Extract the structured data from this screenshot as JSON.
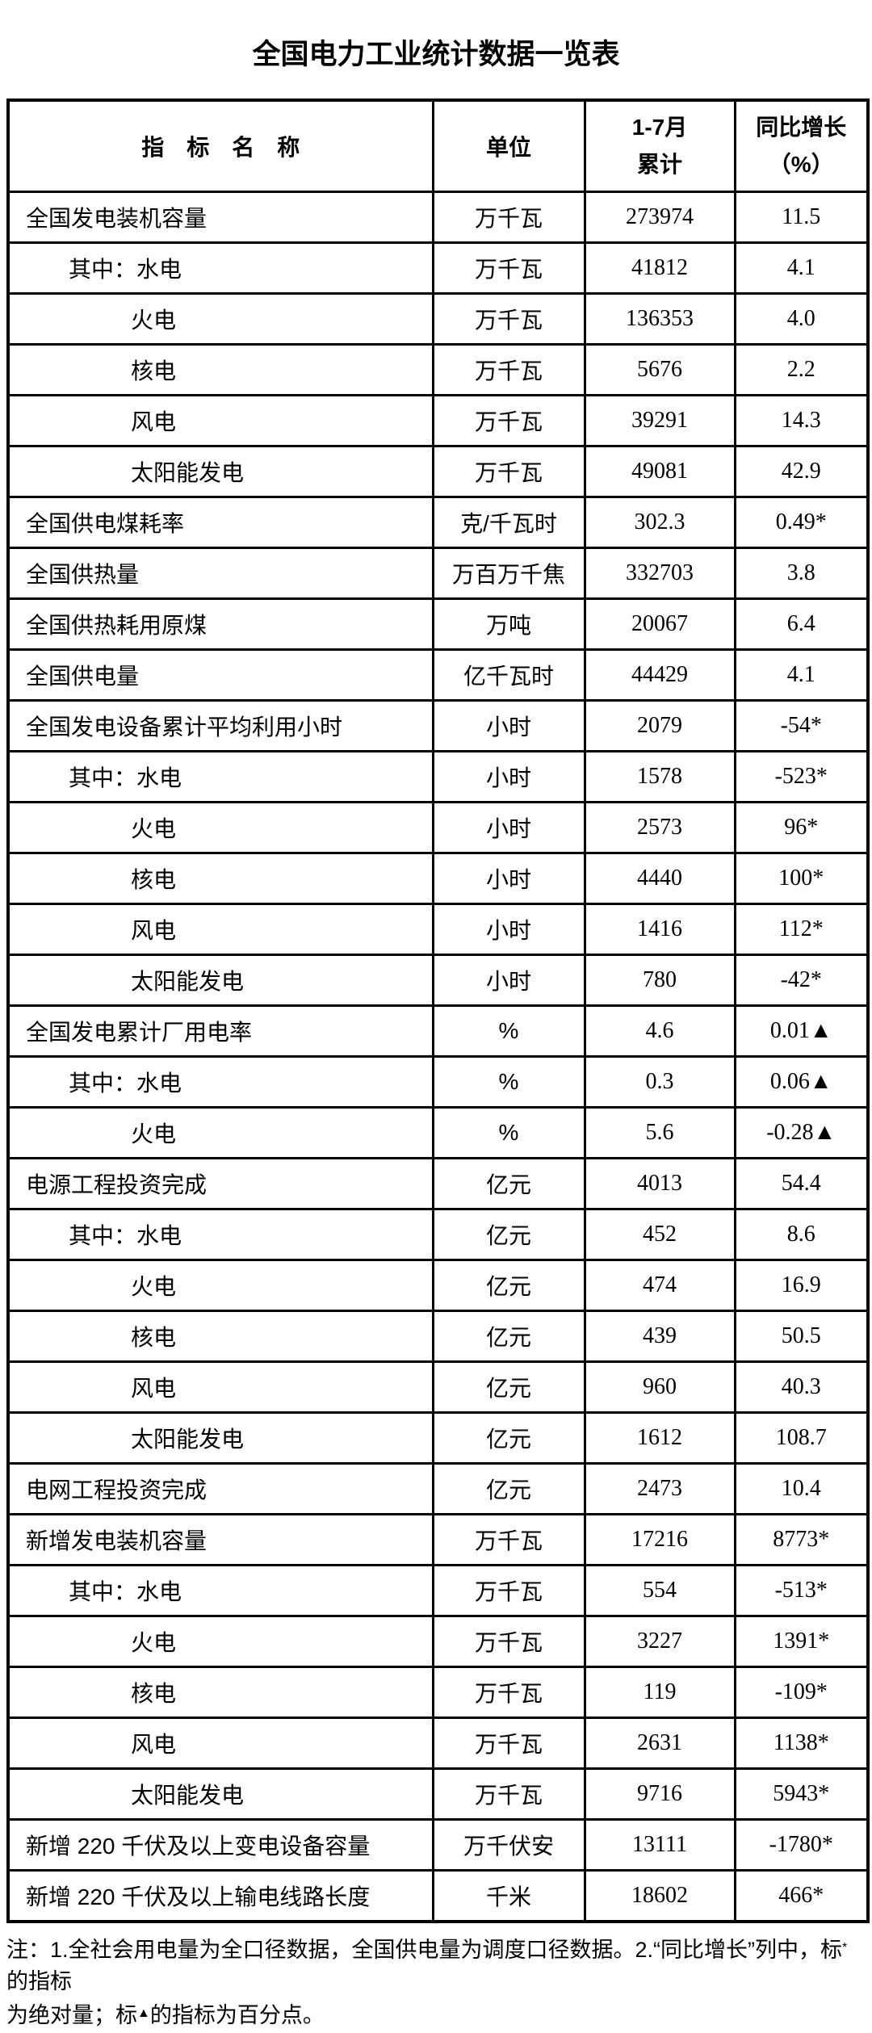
{
  "page": {
    "title": "全国电力工业统计数据一览表"
  },
  "table": {
    "header": {
      "indicator": "指　标　名　称",
      "unit": "单位",
      "period_line1": "1-7月",
      "period_line2": "累计",
      "growth_line1": "同比增长",
      "growth_line2": "（%）"
    },
    "rows": [
      {
        "name": "全国发电装机容量",
        "unit": "万千瓦",
        "value": "273974",
        "growth": "11.5",
        "indent": 0
      },
      {
        "name": "其中：水电",
        "unit": "万千瓦",
        "value": "41812",
        "growth": "4.1",
        "indent": 1
      },
      {
        "name": "火电",
        "unit": "万千瓦",
        "value": "136353",
        "growth": "4.0",
        "indent": 2
      },
      {
        "name": "核电",
        "unit": "万千瓦",
        "value": "5676",
        "growth": "2.2",
        "indent": 2
      },
      {
        "name": "风电",
        "unit": "万千瓦",
        "value": "39291",
        "growth": "14.3",
        "indent": 2
      },
      {
        "name": "太阳能发电",
        "unit": "万千瓦",
        "value": "49081",
        "growth": "42.9",
        "indent": 2
      },
      {
        "name": "全国供电煤耗率",
        "unit": "克/千瓦时",
        "value": "302.3",
        "growth": "0.49*",
        "indent": 0
      },
      {
        "name": "全国供热量",
        "unit": "万百万千焦",
        "value": "332703",
        "growth": "3.8",
        "indent": 0
      },
      {
        "name": "全国供热耗用原煤",
        "unit": "万吨",
        "value": "20067",
        "growth": "6.4",
        "indent": 0
      },
      {
        "name": "全国供电量",
        "unit": "亿千瓦时",
        "value": "44429",
        "growth": "4.1",
        "indent": 0
      },
      {
        "name": "全国发电设备累计平均利用小时",
        "unit": "小时",
        "value": "2079",
        "growth": "-54*",
        "indent": 0
      },
      {
        "name": "其中：水电",
        "unit": "小时",
        "value": "1578",
        "growth": "-523*",
        "indent": 1
      },
      {
        "name": "火电",
        "unit": "小时",
        "value": "2573",
        "growth": "96*",
        "indent": 2
      },
      {
        "name": "核电",
        "unit": "小时",
        "value": "4440",
        "growth": "100*",
        "indent": 2
      },
      {
        "name": "风电",
        "unit": "小时",
        "value": "1416",
        "growth": "112*",
        "indent": 2
      },
      {
        "name": "太阳能发电",
        "unit": "小时",
        "value": "780",
        "growth": "-42*",
        "indent": 2
      },
      {
        "name": "全国发电累计厂用电率",
        "unit": "%",
        "value": "4.6",
        "growth": "0.01▲",
        "indent": 0
      },
      {
        "name": "其中：水电",
        "unit": "%",
        "value": "0.3",
        "growth": "0.06▲",
        "indent": 1
      },
      {
        "name": "火电",
        "unit": "%",
        "value": "5.6",
        "growth": "-0.28▲",
        "indent": 2
      },
      {
        "name": "电源工程投资完成",
        "unit": "亿元",
        "value": "4013",
        "growth": "54.4",
        "indent": 0
      },
      {
        "name": "其中：水电",
        "unit": "亿元",
        "value": "452",
        "growth": "8.6",
        "indent": 1
      },
      {
        "name": "火电",
        "unit": "亿元",
        "value": "474",
        "growth": "16.9",
        "indent": 2
      },
      {
        "name": "核电",
        "unit": "亿元",
        "value": "439",
        "growth": "50.5",
        "indent": 2
      },
      {
        "name": "风电",
        "unit": "亿元",
        "value": "960",
        "growth": "40.3",
        "indent": 2
      },
      {
        "name": "太阳能发电",
        "unit": "亿元",
        "value": "1612",
        "growth": "108.7",
        "indent": 2
      },
      {
        "name": "电网工程投资完成",
        "unit": "亿元",
        "value": "2473",
        "growth": "10.4",
        "indent": 0
      },
      {
        "name": "新增发电装机容量",
        "unit": "万千瓦",
        "value": "17216",
        "growth": "8773*",
        "indent": 0
      },
      {
        "name": "其中：水电",
        "unit": "万千瓦",
        "value": "554",
        "growth": "-513*",
        "indent": 1
      },
      {
        "name": "火电",
        "unit": "万千瓦",
        "value": "3227",
        "growth": "1391*",
        "indent": 2
      },
      {
        "name": "核电",
        "unit": "万千瓦",
        "value": "119",
        "growth": "-109*",
        "indent": 2
      },
      {
        "name": "风电",
        "unit": "万千瓦",
        "value": "2631",
        "growth": "1138*",
        "indent": 2
      },
      {
        "name": "太阳能发电",
        "unit": "万千瓦",
        "value": "9716",
        "growth": "5943*",
        "indent": 2
      },
      {
        "name": "新增 220 千伏及以上变电设备容量",
        "unit": "万千伏安",
        "value": "13111",
        "growth": "-1780*",
        "indent": 0
      },
      {
        "name": "新增 220 千伏及以上输电线路长度",
        "unit": "千米",
        "value": "18602",
        "growth": "466*",
        "indent": 0
      }
    ]
  },
  "footnote": {
    "line1_pre": "注：1.全社会用电量为全口径数据，全国供电量为调度口径数据。2.“同比增长”列中，标",
    "line1_sup": "*",
    "line1_post": "的指标",
    "line2_pre": "为绝对量；标",
    "line2_sup": "▲",
    "line2_post": "的指标为百分点。"
  }
}
